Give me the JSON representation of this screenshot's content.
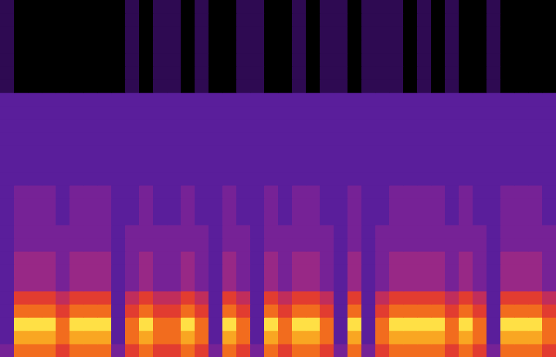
{
  "chart_data": {
    "type": "heatmap",
    "tick_labels": false,
    "xlim": [
      0,
      40
    ],
    "ylim": [
      0,
      27
    ],
    "zlim": [
      0,
      10
    ],
    "cells": [
      [
        4,
        8,
        8,
        8,
        7,
        8,
        8,
        8,
        4,
        7,
        8,
        7,
        7,
        8,
        7,
        4,
        8,
        7,
        4,
        8,
        7,
        8,
        8,
        7,
        4,
        8,
        4,
        7,
        8,
        8,
        8,
        8,
        7,
        8,
        7,
        4,
        8,
        8,
        8,
        7
      ],
      [
        3,
        9,
        9,
        9,
        8,
        9,
        9,
        9,
        3,
        8,
        9,
        8,
        8,
        9,
        8,
        3,
        9,
        8,
        3,
        9,
        8,
        9,
        9,
        8,
        3,
        9,
        3,
        8,
        9,
        9,
        9,
        9,
        8,
        9,
        8,
        3,
        9,
        9,
        9,
        8
      ],
      [
        3,
        10,
        10,
        10,
        8,
        10,
        10,
        10,
        3,
        8,
        10,
        8,
        8,
        10,
        8,
        3,
        10,
        8,
        3,
        10,
        8,
        10,
        10,
        8,
        3,
        10,
        3,
        8,
        10,
        10,
        10,
        10,
        8,
        10,
        8,
        3,
        10,
        10,
        10,
        8
      ],
      [
        3,
        8,
        8,
        8,
        7,
        8,
        8,
        8,
        3,
        7,
        8,
        7,
        7,
        8,
        7,
        3,
        8,
        7,
        3,
        8,
        7,
        8,
        8,
        7,
        3,
        8,
        3,
        7,
        8,
        8,
        8,
        8,
        7,
        8,
        7,
        3,
        8,
        8,
        8,
        7
      ],
      [
        3,
        7,
        7,
        7,
        6,
        7,
        7,
        7,
        3,
        6,
        7,
        6,
        6,
        7,
        6,
        3,
        7,
        6,
        3,
        7,
        6,
        7,
        7,
        6,
        3,
        7,
        3,
        6,
        7,
        7,
        7,
        7,
        6,
        7,
        6,
        3,
        7,
        7,
        7,
        6
      ],
      [
        3,
        5,
        5,
        5,
        4,
        5,
        5,
        5,
        3,
        4,
        5,
        4,
        4,
        5,
        4,
        3,
        5,
        4,
        3,
        5,
        4,
        5,
        5,
        4,
        3,
        5,
        3,
        4,
        5,
        5,
        5,
        5,
        4,
        5,
        4,
        3,
        5,
        5,
        5,
        4
      ],
      [
        3,
        5,
        5,
        5,
        4,
        5,
        5,
        5,
        3,
        4,
        5,
        4,
        4,
        5,
        4,
        3,
        5,
        4,
        3,
        5,
        4,
        5,
        5,
        4,
        3,
        5,
        3,
        4,
        5,
        5,
        5,
        5,
        4,
        5,
        4,
        3,
        5,
        5,
        5,
        4
      ],
      [
        3,
        5,
        5,
        5,
        4,
        5,
        5,
        5,
        3,
        4,
        5,
        4,
        4,
        5,
        4,
        3,
        5,
        4,
        3,
        5,
        4,
        5,
        5,
        4,
        3,
        5,
        3,
        4,
        5,
        5,
        5,
        5,
        4,
        5,
        4,
        3,
        5,
        5,
        5,
        4
      ],
      [
        3,
        4,
        4,
        4,
        4,
        4,
        4,
        4,
        3,
        4,
        4,
        4,
        4,
        4,
        4,
        3,
        4,
        4,
        3,
        4,
        4,
        4,
        4,
        4,
        3,
        4,
        3,
        4,
        4,
        4,
        4,
        4,
        4,
        4,
        4,
        3,
        4,
        4,
        4,
        4
      ],
      [
        3,
        4,
        4,
        4,
        4,
        4,
        4,
        4,
        3,
        4,
        4,
        4,
        4,
        4,
        4,
        3,
        4,
        4,
        3,
        4,
        4,
        4,
        4,
        4,
        3,
        4,
        3,
        4,
        4,
        4,
        4,
        4,
        4,
        4,
        4,
        3,
        4,
        4,
        4,
        4
      ],
      [
        3,
        4,
        4,
        4,
        3,
        4,
        4,
        4,
        3,
        3,
        4,
        3,
        3,
        4,
        3,
        3,
        4,
        3,
        3,
        4,
        3,
        4,
        4,
        3,
        3,
        4,
        3,
        3,
        4,
        4,
        4,
        4,
        3,
        4,
        3,
        3,
        4,
        4,
        4,
        3
      ],
      [
        3,
        4,
        4,
        4,
        3,
        4,
        4,
        4,
        3,
        3,
        4,
        3,
        3,
        4,
        3,
        3,
        4,
        3,
        3,
        4,
        3,
        4,
        4,
        3,
        3,
        4,
        3,
        3,
        4,
        4,
        4,
        4,
        3,
        4,
        3,
        3,
        4,
        4,
        4,
        3
      ],
      [
        3,
        4,
        4,
        4,
        3,
        4,
        4,
        4,
        3,
        3,
        4,
        3,
        3,
        4,
        3,
        3,
        4,
        3,
        3,
        4,
        3,
        4,
        4,
        3,
        3,
        4,
        3,
        3,
        4,
        4,
        4,
        4,
        3,
        4,
        3,
        3,
        4,
        4,
        4,
        3
      ],
      [
        3,
        3,
        3,
        3,
        3,
        3,
        3,
        3,
        3,
        3,
        3,
        3,
        3,
        3,
        3,
        3,
        3,
        3,
        3,
        3,
        3,
        3,
        3,
        3,
        3,
        3,
        3,
        3,
        3,
        3,
        3,
        3,
        3,
        3,
        3,
        3,
        3,
        3,
        3,
        3
      ],
      [
        3,
        3,
        3,
        3,
        3,
        3,
        3,
        3,
        3,
        3,
        3,
        3,
        3,
        3,
        3,
        3,
        3,
        3,
        3,
        3,
        3,
        3,
        3,
        3,
        3,
        3,
        3,
        3,
        3,
        3,
        3,
        3,
        3,
        3,
        3,
        3,
        3,
        3,
        3,
        3
      ],
      [
        3,
        3,
        3,
        3,
        3,
        3,
        3,
        3,
        3,
        3,
        3,
        3,
        3,
        3,
        3,
        3,
        3,
        3,
        3,
        3,
        3,
        3,
        3,
        3,
        3,
        3,
        3,
        3,
        3,
        3,
        3,
        3,
        3,
        3,
        3,
        3,
        3,
        3,
        3,
        3
      ],
      [
        3,
        3,
        3,
        3,
        3,
        3,
        3,
        3,
        3,
        3,
        3,
        3,
        3,
        3,
        3,
        3,
        3,
        3,
        3,
        3,
        3,
        3,
        3,
        3,
        3,
        3,
        3,
        3,
        3,
        3,
        3,
        3,
        3,
        3,
        3,
        3,
        3,
        3,
        3,
        3
      ],
      [
        3,
        3,
        3,
        3,
        3,
        3,
        3,
        3,
        3,
        3,
        3,
        3,
        3,
        3,
        3,
        3,
        3,
        3,
        3,
        3,
        3,
        3,
        3,
        3,
        3,
        3,
        3,
        3,
        3,
        3,
        3,
        3,
        3,
        3,
        3,
        3,
        3,
        3,
        3,
        3
      ],
      [
        3,
        3,
        3,
        3,
        3,
        3,
        3,
        3,
        3,
        3,
        3,
        3,
        3,
        3,
        3,
        3,
        3,
        3,
        3,
        3,
        3,
        3,
        3,
        3,
        3,
        3,
        3,
        3,
        3,
        3,
        3,
        3,
        3,
        3,
        3,
        3,
        3,
        3,
        3,
        3
      ],
      [
        3,
        3,
        3,
        3,
        3,
        3,
        3,
        3,
        3,
        3,
        3,
        3,
        3,
        3,
        3,
        3,
        3,
        3,
        3,
        3,
        3,
        3,
        3,
        3,
        3,
        3,
        3,
        3,
        3,
        3,
        3,
        3,
        3,
        3,
        3,
        3,
        3,
        3,
        3,
        3
      ],
      [
        1,
        0,
        0,
        0,
        0,
        0,
        0,
        0,
        0,
        1,
        0,
        1,
        1,
        0,
        1,
        0,
        0,
        1,
        1,
        0,
        0,
        1,
        0,
        1,
        1,
        0,
        1,
        1,
        1,
        0,
        1,
        0,
        1,
        0,
        0,
        1,
        0,
        0,
        0,
        0
      ],
      [
        1,
        0,
        0,
        0,
        0,
        0,
        0,
        0,
        0,
        1,
        0,
        1,
        1,
        0,
        1,
        0,
        0,
        1,
        1,
        0,
        0,
        1,
        0,
        1,
        1,
        0,
        1,
        1,
        1,
        0,
        1,
        0,
        1,
        0,
        0,
        1,
        0,
        0,
        0,
        0
      ],
      [
        1,
        0,
        0,
        0,
        0,
        0,
        0,
        0,
        0,
        1,
        0,
        1,
        1,
        0,
        1,
        0,
        0,
        1,
        1,
        0,
        0,
        1,
        0,
        1,
        1,
        0,
        1,
        1,
        1,
        0,
        1,
        0,
        1,
        0,
        0,
        1,
        0,
        0,
        0,
        0
      ],
      [
        1,
        0,
        0,
        0,
        0,
        0,
        0,
        0,
        0,
        1,
        0,
        1,
        1,
        0,
        1,
        0,
        0,
        1,
        1,
        0,
        0,
        1,
        0,
        1,
        1,
        0,
        1,
        1,
        1,
        0,
        1,
        0,
        1,
        0,
        0,
        1,
        0,
        0,
        0,
        0
      ],
      [
        1,
        0,
        0,
        0,
        0,
        0,
        0,
        0,
        0,
        1,
        0,
        1,
        1,
        0,
        1,
        0,
        0,
        1,
        1,
        0,
        0,
        1,
        0,
        1,
        1,
        0,
        1,
        1,
        1,
        0,
        1,
        0,
        1,
        0,
        0,
        1,
        0,
        0,
        0,
        0
      ],
      [
        1,
        0,
        0,
        0,
        0,
        0,
        0,
        0,
        0,
        1,
        0,
        1,
        1,
        0,
        1,
        0,
        0,
        1,
        1,
        0,
        0,
        1,
        0,
        1,
        1,
        0,
        1,
        1,
        1,
        0,
        1,
        0,
        1,
        0,
        0,
        1,
        0,
        0,
        0,
        0
      ],
      [
        1,
        0,
        0,
        0,
        0,
        0,
        0,
        0,
        0,
        1,
        0,
        1,
        1,
        0,
        1,
        0,
        0,
        1,
        1,
        0,
        0,
        1,
        0,
        1,
        1,
        0,
        1,
        1,
        1,
        0,
        1,
        0,
        1,
        0,
        0,
        1,
        0,
        0,
        0,
        0
      ]
    ]
  }
}
